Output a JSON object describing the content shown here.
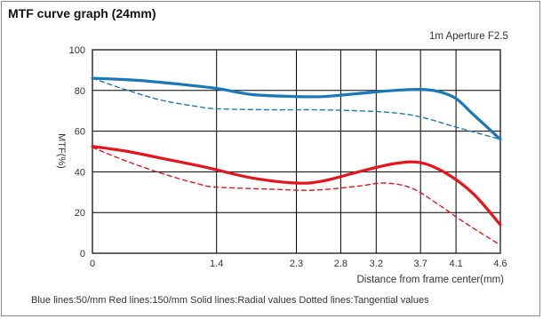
{
  "chart_data": {
    "type": "line",
    "title": "MTF curve graph (24mm)",
    "subtitle": "1m Aperture F2.5",
    "xlabel": "Distance from frame center(mm)",
    "ylabel": "MTF(%)",
    "xlim": [
      0,
      4.6
    ],
    "ylim": [
      0,
      100
    ],
    "x_ticks": [
      0,
      1.4,
      2.3,
      2.8,
      3.2,
      3.7,
      4.1,
      4.6
    ],
    "x_tick_labels": [
      "0",
      "1.4",
      "2.3",
      "2.8",
      "3.2",
      "3.7",
      "4.1",
      "4.6"
    ],
    "y_ticks": [
      0,
      20,
      40,
      60,
      80,
      100
    ],
    "y_tick_labels": [
      "0",
      "20",
      "40",
      "60",
      "80",
      "100"
    ],
    "grid": true,
    "series": [
      {
        "color": "#1a78b8",
        "style": "solid",
        "x": [
          0,
          0.5,
          1.0,
          1.4,
          1.8,
          2.3,
          2.6,
          3.0,
          3.4,
          3.7,
          3.9,
          4.1,
          4.3,
          4.6
        ],
        "y": [
          86,
          85,
          83,
          81,
          78,
          77,
          77,
          78.5,
          80,
          80.5,
          79.5,
          76,
          68,
          56
        ]
      },
      {
        "color": "#1a78b8",
        "style": "dashed",
        "x": [
          0,
          0.4,
          0.8,
          1.2,
          1.4,
          2.0,
          2.5,
          3.0,
          3.4,
          3.7,
          4.1,
          4.6
        ],
        "y": [
          86,
          80,
          75,
          72,
          71,
          70.5,
          70.5,
          70,
          69,
          67,
          62,
          56
        ]
      },
      {
        "color": "#e8141b",
        "style": "solid",
        "x": [
          0,
          0.4,
          0.8,
          1.2,
          1.4,
          1.8,
          2.3,
          2.6,
          3.0,
          3.4,
          3.7,
          4.0,
          4.3,
          4.6
        ],
        "y": [
          52.5,
          50,
          46.5,
          43,
          41,
          37,
          34.5,
          35.5,
          40,
          44,
          44.5,
          39,
          29,
          14
        ]
      },
      {
        "color": "#e8141b",
        "style": "dashed",
        "x": [
          0,
          0.4,
          0.8,
          1.2,
          1.4,
          2.0,
          2.5,
          3.0,
          3.3,
          3.6,
          3.9,
          4.2,
          4.6
        ],
        "y": [
          52,
          45,
          39,
          34,
          32.5,
          31.5,
          31,
          33,
          34.5,
          32,
          24,
          15,
          4
        ]
      }
    ],
    "note": "Blue lines:50/mm  Red lines:150/mm  Solid lines:Radial values  Dotted lines:Tangential values"
  }
}
